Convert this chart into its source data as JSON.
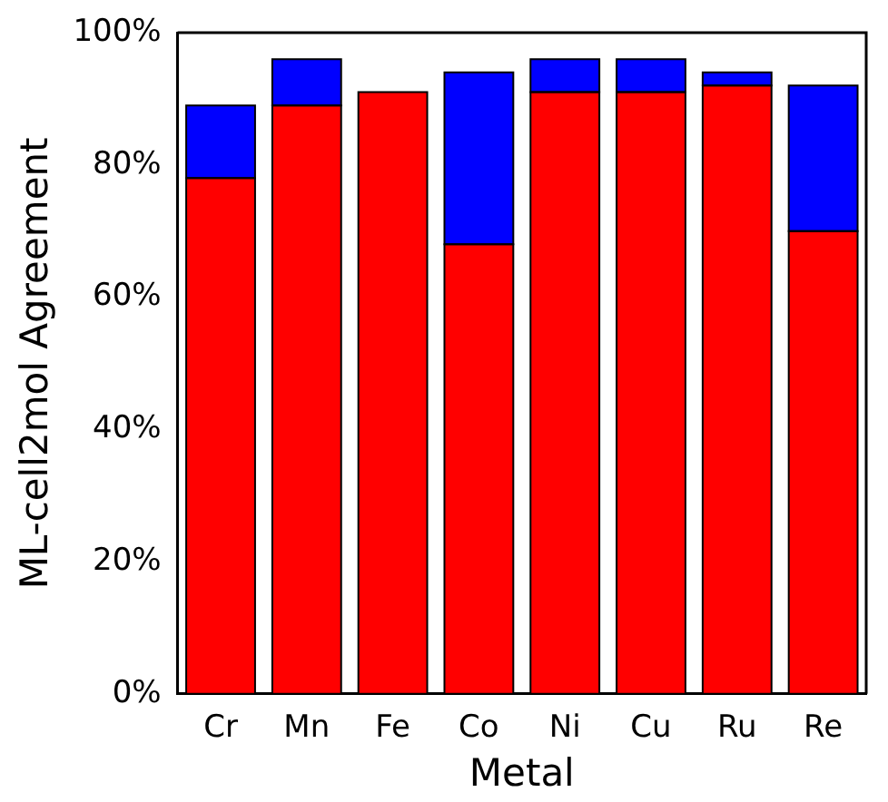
{
  "chart_data": {
    "type": "bar",
    "stacked": true,
    "xlabel": "Metal",
    "ylabel": "ML-cell2mol Agreement",
    "categories": [
      "Cr",
      "Mn",
      "Fe",
      "Co",
      "Ni",
      "Cu",
      "Ru",
      "Re"
    ],
    "series": [
      {
        "color": "#ff0000",
        "values": [
          78,
          89,
          91,
          68,
          91,
          91,
          92,
          70
        ]
      },
      {
        "color": "#0000ff",
        "values": [
          11,
          7,
          0,
          26,
          5,
          5,
          2,
          22
        ]
      }
    ],
    "ylim": [
      0,
      100
    ],
    "yticks": [
      {
        "value": 0,
        "label": "0%"
      },
      {
        "value": 20,
        "label": "20%"
      },
      {
        "value": 40,
        "label": "40%"
      },
      {
        "value": 60,
        "label": "60%"
      },
      {
        "value": 80,
        "label": "80%"
      },
      {
        "value": 100,
        "label": "100%"
      }
    ],
    "grid": false,
    "legend": false
  }
}
